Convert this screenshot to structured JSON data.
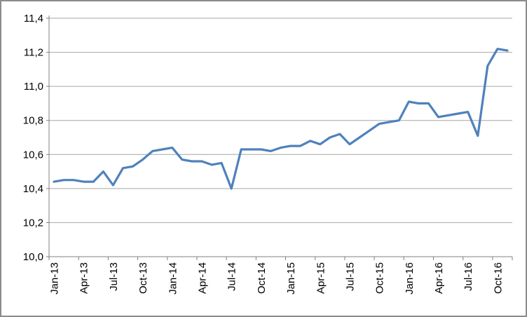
{
  "chart_data": {
    "type": "line",
    "title": "",
    "xlabel": "",
    "ylabel": "",
    "legend": "none",
    "grid": true,
    "decimal_separator": ",",
    "ylim": [
      10.0,
      11.4
    ],
    "y_ticks": [
      {
        "value": 10.0,
        "label": "10,0"
      },
      {
        "value": 10.2,
        "label": "10,2"
      },
      {
        "value": 10.4,
        "label": "10,4"
      },
      {
        "value": 10.6,
        "label": "10,6"
      },
      {
        "value": 10.8,
        "label": "10,8"
      },
      {
        "value": 11.0,
        "label": "11,0"
      },
      {
        "value": 11.2,
        "label": "11,2"
      },
      {
        "value": 11.4,
        "label": "11,4"
      }
    ],
    "x_tick_labels": [
      "Jan-13",
      "Apr-13",
      "Jul-13",
      "Oct-13",
      "Jan-14",
      "Apr-14",
      "Jul-14",
      "Oct-14",
      "Jan-15",
      "Apr-15",
      "Jul-15",
      "Oct-15",
      "Jan-16",
      "Apr-16",
      "Jul-16",
      "Oct-16"
    ],
    "x_tick_every": 3,
    "months": [
      "Jan-13",
      "Feb-13",
      "Mar-13",
      "Apr-13",
      "May-13",
      "Jun-13",
      "Jul-13",
      "Aug-13",
      "Sep-13",
      "Oct-13",
      "Nov-13",
      "Dec-13",
      "Jan-14",
      "Feb-14",
      "Mar-14",
      "Apr-14",
      "May-14",
      "Jun-14",
      "Jul-14",
      "Aug-14",
      "Sep-14",
      "Oct-14",
      "Nov-14",
      "Dec-14",
      "Jan-15",
      "Feb-15",
      "Mar-15",
      "Apr-15",
      "May-15",
      "Jun-15",
      "Jul-15",
      "Aug-15",
      "Sep-15",
      "Oct-15",
      "Nov-15",
      "Dec-15",
      "Jan-16",
      "Feb-16",
      "Mar-16",
      "Apr-16",
      "May-16",
      "Jun-16",
      "Jul-16",
      "Aug-16",
      "Sep-16",
      "Oct-16",
      "Nov-16"
    ],
    "series": [
      {
        "name": "value",
        "values": [
          10.44,
          10.45,
          10.45,
          10.44,
          10.44,
          10.5,
          10.42,
          10.52,
          10.53,
          10.57,
          10.62,
          10.63,
          10.64,
          10.57,
          10.56,
          10.56,
          10.54,
          10.55,
          10.4,
          10.63,
          10.63,
          10.63,
          10.62,
          10.64,
          10.65,
          10.65,
          10.68,
          10.66,
          10.7,
          10.72,
          10.66,
          10.7,
          10.74,
          10.78,
          10.79,
          10.8,
          10.91,
          10.9,
          10.9,
          10.82,
          10.83,
          10.84,
          10.85,
          10.71,
          11.12,
          11.22,
          11.21
        ]
      }
    ]
  },
  "colors": {
    "line": "#4F81BD",
    "gridline": "#A6A6A6",
    "axis": "#808080",
    "border": "#8C8C8C",
    "text": "#000000",
    "background": "#FFFFFF"
  }
}
